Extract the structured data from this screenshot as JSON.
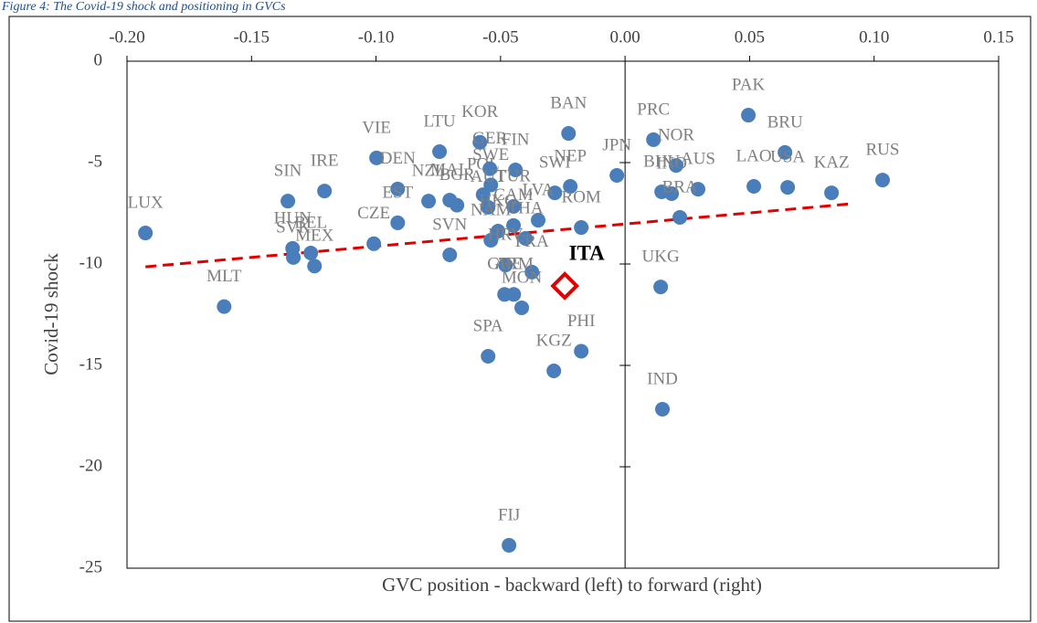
{
  "chart_data": {
    "type": "scatter",
    "caption": "Figure 4: The Covid-19 shock and positioning in GVCs",
    "x_label": "GVC position - backward (left) to forward (right)",
    "y_label": "Covid-19 shock",
    "xlim": [
      -0.2,
      0.15
    ],
    "xticks": [
      {
        "value": -0.2,
        "label": "-0.20"
      },
      {
        "value": -0.15,
        "label": "-0.15"
      },
      {
        "value": -0.1,
        "label": "-0.10"
      },
      {
        "value": -0.05,
        "label": "-0.05"
      },
      {
        "value": 0,
        "label": "0.00"
      },
      {
        "value": 0.05,
        "label": "0.05"
      },
      {
        "value": 0.1,
        "label": "0.10"
      },
      {
        "value": 0.15,
        "label": "0.15"
      }
    ],
    "ylim": [
      -25,
      0
    ],
    "yticks": [
      0,
      -5,
      -10,
      -15,
      -20,
      -25
    ],
    "color": "#4a7ebb",
    "point_labels": [
      "LUX",
      "MLT",
      "SIN",
      "IRE",
      "HUN",
      "SVK",
      "BEL",
      "MEX",
      "VIE",
      "DEN",
      "EST",
      "CZE",
      "LTU",
      "KOR",
      "NZL",
      "MAL",
      "BGR",
      "SWE",
      "POL",
      "FIN",
      "GER",
      "BAN",
      "NEP",
      "SWI",
      "JPN",
      "AUT",
      "TUR",
      "ROM",
      "HKG",
      "CAM",
      "LVA",
      "SVN",
      "NAM",
      "THA",
      "FRA",
      "HRV",
      "GRE",
      "ARM",
      "MON",
      "PHI",
      "KGZ",
      "SPA",
      "FIJ",
      "PRC",
      "NOR",
      "BHU",
      "INO",
      "AUS",
      "BRA",
      "UKG",
      "IND",
      "PAK",
      "BRU",
      "LAO",
      "USA",
      "KAZ",
      "RUS"
    ],
    "x": [
      -0.1926,
      -0.161,
      -0.1354,
      -0.1207,
      -0.1335,
      -0.1332,
      -0.1262,
      -0.1247,
      -0.0998,
      -0.0913,
      -0.0913,
      -0.1009,
      -0.0745,
      -0.0583,
      -0.0789,
      -0.0704,
      -0.0675,
      -0.0539,
      -0.057,
      -0.044,
      -0.0543,
      -0.0227,
      -0.022,
      -0.0282,
      -0.0033,
      -0.055,
      -0.0448,
      -0.0176,
      -0.051,
      -0.0448,
      -0.0349,
      -0.0704,
      -0.0539,
      -0.04,
      -0.0374,
      -0.048,
      -0.0484,
      -0.0447,
      -0.0415,
      -0.0176,
      -0.0286,
      -0.055,
      -0.0466,
      0.0114,
      0.0205,
      0.0147,
      0.0187,
      0.0293,
      0.022,
      0.0143,
      0.015,
      0.0495,
      0.0642,
      0.0517,
      0.0653,
      0.0829,
      0.1034
    ],
    "values": [
      -8.47,
      -12.1,
      -6.9,
      -6.4,
      -9.23,
      -9.68,
      -9.46,
      -10.1,
      -4.77,
      -6.3,
      -7.97,
      -9.0,
      -4.46,
      -4.0,
      -6.9,
      -6.85,
      -7.1,
      -6.1,
      -6.58,
      -5.36,
      -5.3,
      -3.56,
      -6.17,
      -6.49,
      -5.63,
      -7.2,
      -7.16,
      -8.2,
      -8.38,
      -8.1,
      -7.84,
      -9.55,
      -8.83,
      -8.74,
      -10.4,
      -10.05,
      -11.5,
      -11.5,
      -12.16,
      -14.3,
      -15.27,
      -14.55,
      -23.87,
      -3.87,
      -5.14,
      -6.44,
      -6.53,
      -6.31,
      -7.7,
      -11.13,
      -17.16,
      -2.66,
      -4.5,
      -6.17,
      -6.22,
      -6.49,
      -5.86
    ],
    "highlight": {
      "label": "ITA",
      "x": -0.0242,
      "y": -11.08,
      "color": "#e00000"
    },
    "trendline": {
      "x": [
        -0.1926,
        0.091
      ],
      "y": [
        -10.14,
        -7.03
      ],
      "color": "#e00000"
    }
  }
}
